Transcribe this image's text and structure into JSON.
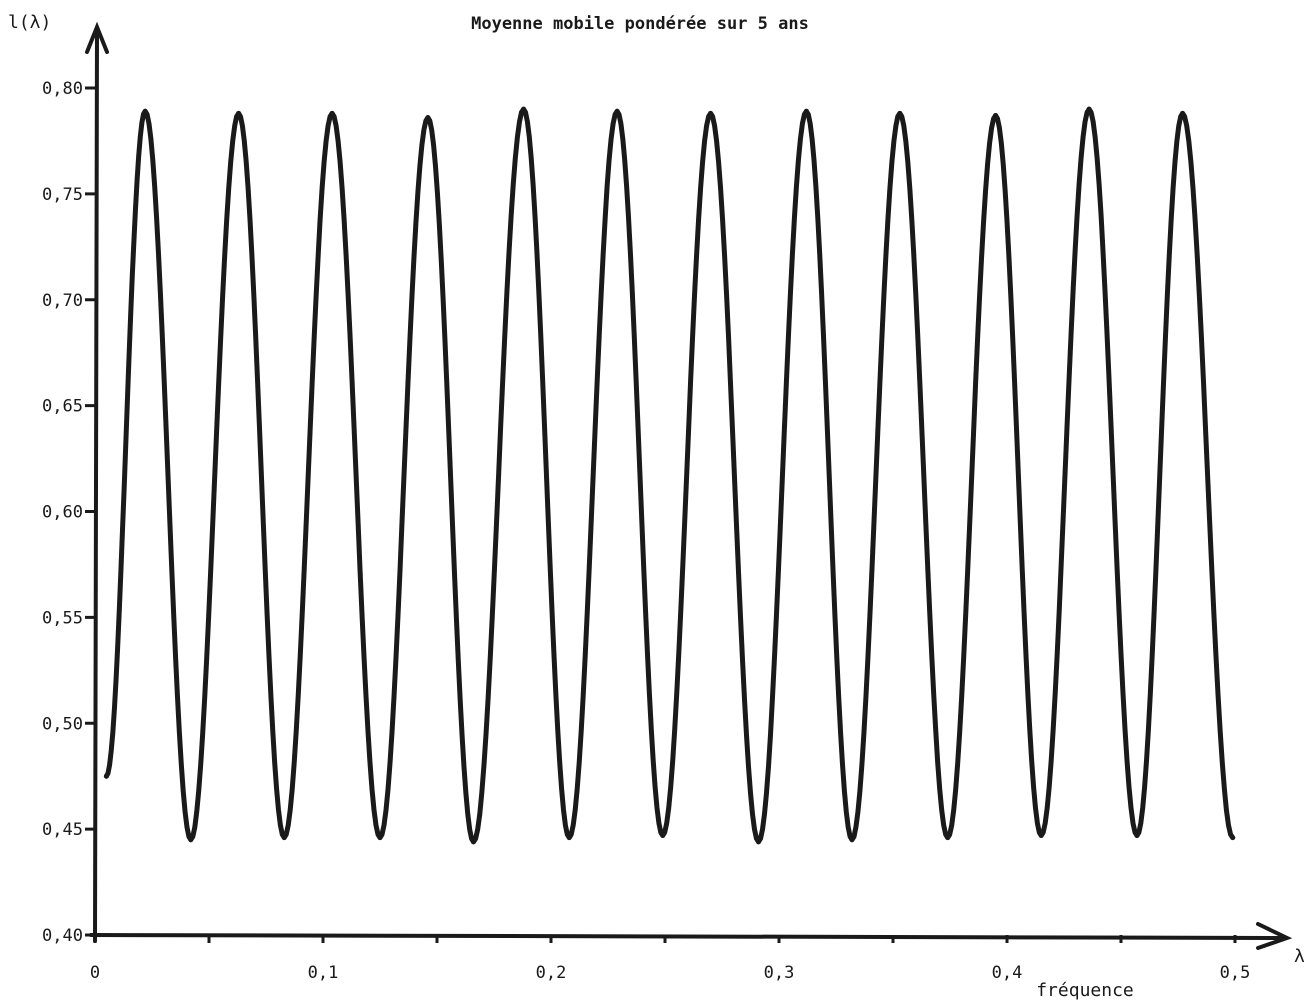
{
  "chart_data": {
    "type": "line",
    "title": "Moyenne mobile pondérée sur 5 ans",
    "ylabel": "l(λ)",
    "xlabel": "λ",
    "xlabel_extra": "fréquence",
    "xlim": [
      0,
      0.5
    ],
    "ylim": [
      0.4,
      0.8
    ],
    "grid": false,
    "legend": "none",
    "x_ticks": [
      0,
      0.05,
      0.1,
      0.15,
      0.2,
      0.25,
      0.3,
      0.35,
      0.4,
      0.45,
      0.5
    ],
    "x_tick_labels": [
      {
        "value": 0,
        "label": "0"
      },
      {
        "value": 0.1,
        "label": "0,1"
      },
      {
        "value": 0.2,
        "label": "0,2"
      },
      {
        "value": 0.3,
        "label": "0,3"
      },
      {
        "value": 0.4,
        "label": "0,4"
      },
      {
        "value": 0.5,
        "label": "0,5"
      }
    ],
    "y_ticks": [
      {
        "value": 0.4,
        "label": "0,40"
      },
      {
        "value": 0.45,
        "label": "0,45"
      },
      {
        "value": 0.5,
        "label": "0,50"
      },
      {
        "value": 0.55,
        "label": "0,55"
      },
      {
        "value": 0.6,
        "label": "0,60"
      },
      {
        "value": 0.65,
        "label": "0,65"
      },
      {
        "value": 0.7,
        "label": "0,70"
      },
      {
        "value": 0.75,
        "label": "0,75"
      },
      {
        "value": 0.8,
        "label": "0,80"
      }
    ],
    "series": [
      {
        "color": "#1a1a1a",
        "points": [
          [
            0.005,
            0.475
          ],
          [
            0.022,
            0.789
          ],
          [
            0.042,
            0.445
          ],
          [
            0.063,
            0.788
          ],
          [
            0.083,
            0.446
          ],
          [
            0.104,
            0.788
          ],
          [
            0.125,
            0.446
          ],
          [
            0.146,
            0.786
          ],
          [
            0.166,
            0.444
          ],
          [
            0.188,
            0.79
          ],
          [
            0.208,
            0.446
          ],
          [
            0.229,
            0.789
          ],
          [
            0.249,
            0.447
          ],
          [
            0.27,
            0.788
          ],
          [
            0.291,
            0.444
          ],
          [
            0.312,
            0.789
          ],
          [
            0.332,
            0.445
          ],
          [
            0.353,
            0.788
          ],
          [
            0.374,
            0.446
          ],
          [
            0.395,
            0.787
          ],
          [
            0.415,
            0.447
          ],
          [
            0.436,
            0.79
          ],
          [
            0.457,
            0.447
          ],
          [
            0.477,
            0.788
          ],
          [
            0.499,
            0.446
          ]
        ]
      }
    ]
  }
}
